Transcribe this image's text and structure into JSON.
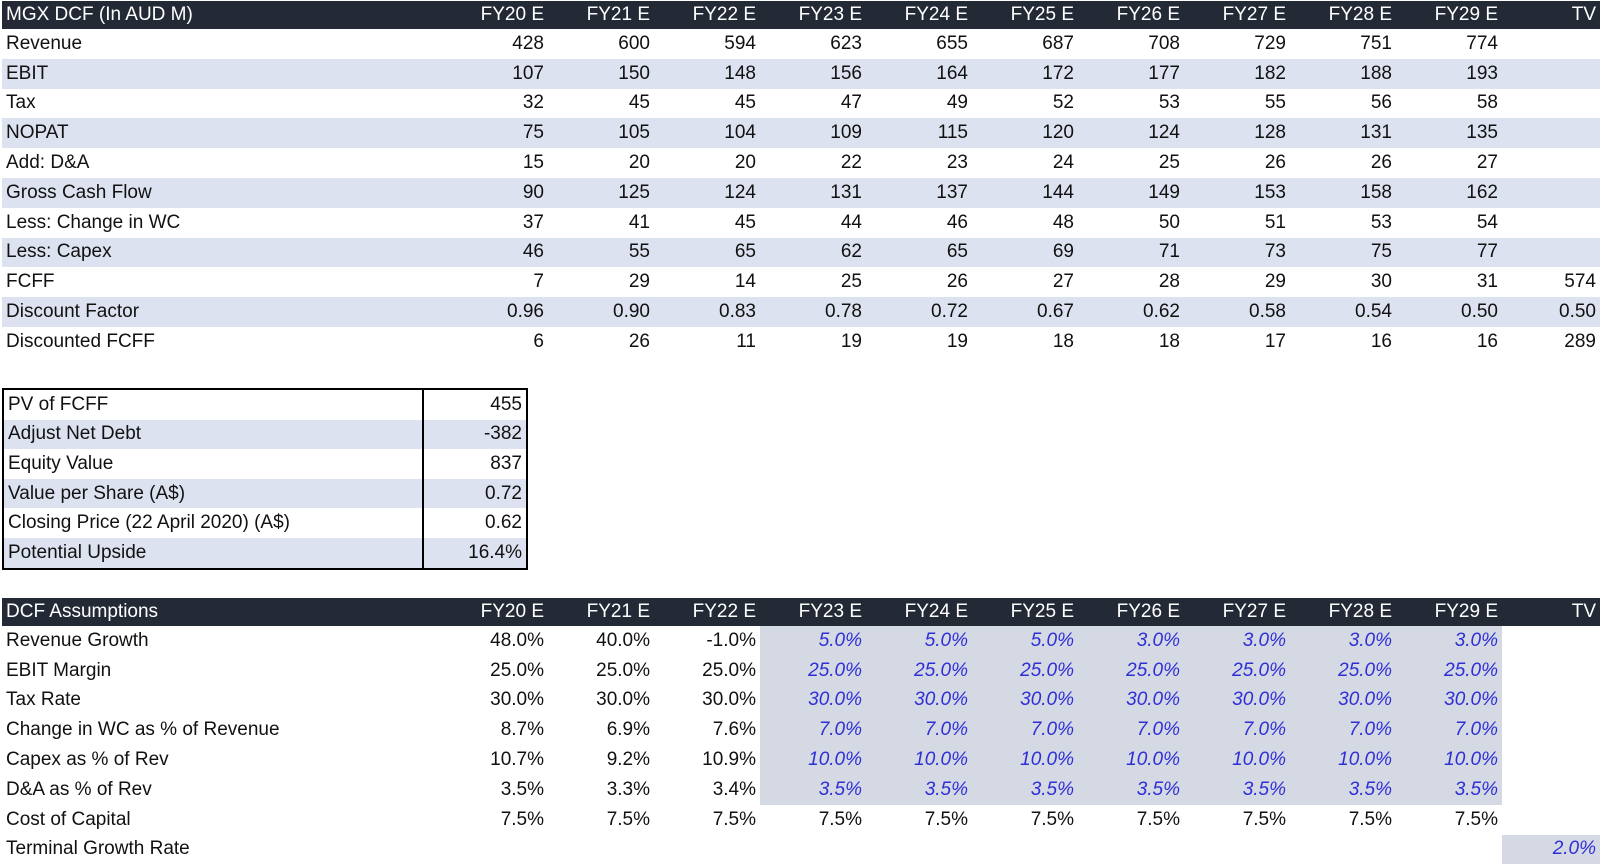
{
  "dcf": {
    "title": "MGX DCF (In AUD M)",
    "columns": [
      "FY20 E",
      "FY21 E",
      "FY22 E",
      "FY23 E",
      "FY24 E",
      "FY25 E",
      "FY26 E",
      "FY27 E",
      "FY28 E",
      "FY29 E",
      "TV"
    ],
    "rows": [
      {
        "label": "Revenue",
        "values": [
          "428",
          "600",
          "594",
          "623",
          "655",
          "687",
          "708",
          "729",
          "751",
          "774",
          ""
        ]
      },
      {
        "label": "EBIT",
        "values": [
          "107",
          "150",
          "148",
          "156",
          "164",
          "172",
          "177",
          "182",
          "188",
          "193",
          ""
        ]
      },
      {
        "label": "Tax",
        "values": [
          "32",
          "45",
          "45",
          "47",
          "49",
          "52",
          "53",
          "55",
          "56",
          "58",
          ""
        ]
      },
      {
        "label": "NOPAT",
        "values": [
          "75",
          "105",
          "104",
          "109",
          "115",
          "120",
          "124",
          "128",
          "131",
          "135",
          ""
        ]
      },
      {
        "label": "Add: D&A",
        "values": [
          "15",
          "20",
          "20",
          "22",
          "23",
          "24",
          "25",
          "26",
          "26",
          "27",
          ""
        ]
      },
      {
        "label": "Gross Cash Flow",
        "values": [
          "90",
          "125",
          "124",
          "131",
          "137",
          "144",
          "149",
          "153",
          "158",
          "162",
          ""
        ]
      },
      {
        "label": "Less: Change in WC",
        "values": [
          "37",
          "41",
          "45",
          "44",
          "46",
          "48",
          "50",
          "51",
          "53",
          "54",
          ""
        ]
      },
      {
        "label": "Less: Capex",
        "values": [
          "46",
          "55",
          "65",
          "62",
          "65",
          "69",
          "71",
          "73",
          "75",
          "77",
          ""
        ]
      },
      {
        "label": "FCFF",
        "values": [
          "7",
          "29",
          "14",
          "25",
          "26",
          "27",
          "28",
          "29",
          "30",
          "31",
          "574"
        ]
      },
      {
        "label": "Discount Factor",
        "values": [
          "0.96",
          "0.90",
          "0.83",
          "0.78",
          "0.72",
          "0.67",
          "0.62",
          "0.58",
          "0.54",
          "0.50",
          "0.50"
        ]
      },
      {
        "label": "Discounted FCFF",
        "values": [
          "6",
          "26",
          "11",
          "19",
          "19",
          "18",
          "18",
          "17",
          "16",
          "16",
          "289"
        ]
      }
    ]
  },
  "summary": {
    "rows": [
      {
        "label": "PV of FCFF",
        "value": "455"
      },
      {
        "label": "Adjust Net Debt",
        "value": "-382"
      },
      {
        "label": "Equity Value",
        "value": "837"
      },
      {
        "label": "Value per Share (A$)",
        "value": "0.72"
      },
      {
        "label": "Closing Price (22 April 2020) (A$)",
        "value": "0.62"
      },
      {
        "label": "Potential Upside",
        "value": "16.4%"
      }
    ]
  },
  "assumptions": {
    "title": "DCF Assumptions",
    "columns": [
      "FY20 E",
      "FY21 E",
      "FY22 E",
      "FY23 E",
      "FY24 E",
      "FY25 E",
      "FY26 E",
      "FY27 E",
      "FY28 E",
      "FY29 E",
      "TV"
    ],
    "rows": [
      {
        "label": "Revenue Growth",
        "values": [
          "48.0%",
          "40.0%",
          "-1.0%",
          "5.0%",
          "5.0%",
          "5.0%",
          "3.0%",
          "3.0%",
          "3.0%",
          "3.0%",
          ""
        ]
      },
      {
        "label": "EBIT Margin",
        "values": [
          "25.0%",
          "25.0%",
          "25.0%",
          "25.0%",
          "25.0%",
          "25.0%",
          "25.0%",
          "25.0%",
          "25.0%",
          "25.0%",
          ""
        ]
      },
      {
        "label": "Tax Rate",
        "values": [
          "30.0%",
          "30.0%",
          "30.0%",
          "30.0%",
          "30.0%",
          "30.0%",
          "30.0%",
          "30.0%",
          "30.0%",
          "30.0%",
          ""
        ]
      },
      {
        "label": "Change in WC as % of Revenue",
        "values": [
          "8.7%",
          "6.9%",
          "7.6%",
          "7.0%",
          "7.0%",
          "7.0%",
          "7.0%",
          "7.0%",
          "7.0%",
          "7.0%",
          ""
        ]
      },
      {
        "label": "Capex as % of Rev",
        "values": [
          "10.7%",
          "9.2%",
          "10.9%",
          "10.0%",
          "10.0%",
          "10.0%",
          "10.0%",
          "10.0%",
          "10.0%",
          "10.0%",
          ""
        ]
      },
      {
        "label": "D&A as % of Rev",
        "values": [
          "3.5%",
          "3.3%",
          "3.4%",
          "3.5%",
          "3.5%",
          "3.5%",
          "3.5%",
          "3.5%",
          "3.5%",
          "3.5%",
          ""
        ]
      },
      {
        "label": "Cost of Capital",
        "values": [
          "7.5%",
          "7.5%",
          "7.5%",
          "7.5%",
          "7.5%",
          "7.5%",
          "7.5%",
          "7.5%",
          "7.5%",
          "7.5%",
          ""
        ]
      },
      {
        "label": "Terminal Growth Rate",
        "values": [
          "",
          "",
          "",
          "",
          "",
          "",
          "",
          "",
          "",
          "",
          "2.0%"
        ]
      }
    ]
  }
}
